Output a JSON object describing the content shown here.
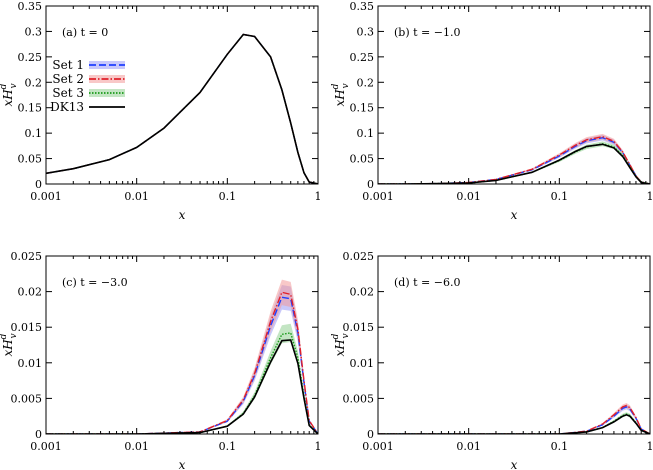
{
  "chart_data": [
    {
      "type": "line",
      "panel_label": "(a) t = 0",
      "xlabel": "x",
      "ylabel": "xH_v^d",
      "xscale": "log",
      "xlim": [
        0.001,
        1
      ],
      "ylim": [
        0,
        0.35
      ],
      "xticks": [
        "0.001",
        "0.01",
        "0.1",
        "1"
      ],
      "yticks": [
        "0",
        "0.05",
        "0.1",
        "0.15",
        "0.2",
        "0.25",
        "0.3",
        "0.35"
      ],
      "legend": {
        "placement": "top-left",
        "entries": [
          {
            "name": "Set 1",
            "color": "#1f3fff",
            "style": "dashed"
          },
          {
            "name": "Set 2",
            "color": "#e0202a",
            "style": "dash-dot"
          },
          {
            "name": "Set 3",
            "color": "#1a9a1a",
            "style": "dotted"
          },
          {
            "name": "DK13",
            "color": "#000000",
            "style": "solid"
          }
        ]
      },
      "x": [
        0.001,
        0.002,
        0.005,
        0.01,
        0.02,
        0.05,
        0.1,
        0.15,
        0.2,
        0.3,
        0.4,
        0.5,
        0.6,
        0.7,
        0.8,
        1.0
      ],
      "series": [
        {
          "name": "Set 1",
          "color": "#1f3fff",
          "values": [
            0.021,
            0.03,
            0.048,
            0.072,
            0.11,
            0.18,
            0.255,
            0.294,
            0.29,
            0.25,
            0.185,
            0.12,
            0.062,
            0.022,
            0.004,
            0.0
          ]
        },
        {
          "name": "Set 2",
          "color": "#e0202a",
          "values": [
            0.021,
            0.03,
            0.048,
            0.072,
            0.11,
            0.18,
            0.255,
            0.294,
            0.29,
            0.25,
            0.185,
            0.12,
            0.062,
            0.022,
            0.004,
            0.0
          ]
        },
        {
          "name": "Set 3",
          "color": "#1a9a1a",
          "values": [
            0.021,
            0.03,
            0.048,
            0.072,
            0.11,
            0.18,
            0.255,
            0.294,
            0.29,
            0.25,
            0.185,
            0.12,
            0.062,
            0.022,
            0.004,
            0.0
          ]
        },
        {
          "name": "DK13",
          "color": "#000000",
          "values": [
            0.021,
            0.03,
            0.048,
            0.072,
            0.11,
            0.18,
            0.255,
            0.294,
            0.29,
            0.25,
            0.185,
            0.12,
            0.062,
            0.022,
            0.004,
            0.0
          ]
        }
      ]
    },
    {
      "type": "line",
      "panel_label": "(b) t = −1.0",
      "xlabel": "x",
      "ylabel": "xH_v^d",
      "xscale": "log",
      "xlim": [
        0.001,
        1
      ],
      "ylim": [
        0,
        0.35
      ],
      "xticks": [
        "0.001",
        "0.01",
        "0.1",
        "1"
      ],
      "yticks": [
        "0",
        "0.05",
        "0.1",
        "0.15",
        "0.2",
        "0.25",
        "0.3",
        "0.35"
      ],
      "x": [
        0.001,
        0.002,
        0.005,
        0.01,
        0.02,
        0.05,
        0.1,
        0.15,
        0.2,
        0.3,
        0.4,
        0.5,
        0.6,
        0.7,
        0.8,
        1.0
      ],
      "series": [
        {
          "name": "Set 1",
          "color": "#1f3fff",
          "values": [
            0.0,
            0.0,
            0.001,
            0.003,
            0.009,
            0.028,
            0.055,
            0.074,
            0.085,
            0.091,
            0.082,
            0.062,
            0.037,
            0.016,
            0.004,
            0.0
          ]
        },
        {
          "name": "Set 2",
          "color": "#e0202a",
          "values": [
            0.0,
            0.0,
            0.001,
            0.003,
            0.009,
            0.029,
            0.057,
            0.076,
            0.087,
            0.093,
            0.084,
            0.063,
            0.038,
            0.016,
            0.004,
            0.0
          ]
        },
        {
          "name": "Set 3",
          "color": "#1a9a1a",
          "values": [
            0.0,
            0.0,
            0.001,
            0.002,
            0.007,
            0.023,
            0.046,
            0.063,
            0.073,
            0.079,
            0.073,
            0.056,
            0.034,
            0.015,
            0.004,
            0.0
          ]
        },
        {
          "name": "DK13",
          "color": "#000000",
          "values": [
            0.0,
            0.0,
            0.001,
            0.002,
            0.007,
            0.023,
            0.047,
            0.064,
            0.074,
            0.078,
            0.071,
            0.054,
            0.032,
            0.014,
            0.003,
            0.0
          ]
        }
      ]
    },
    {
      "type": "line",
      "panel_label": "(c) t = −3.0",
      "xlabel": "x",
      "ylabel": "xH_v^d",
      "xscale": "log",
      "xlim": [
        0.001,
        1
      ],
      "ylim": [
        0,
        0.025
      ],
      "xticks": [
        "0.001",
        "0.01",
        "0.1",
        "1"
      ],
      "yticks": [
        "0",
        "0.005",
        "0.01",
        "0.015",
        "0.02",
        "0.025"
      ],
      "x": [
        0.001,
        0.01,
        0.05,
        0.1,
        0.15,
        0.2,
        0.3,
        0.4,
        0.5,
        0.6,
        0.7,
        0.8,
        1.0
      ],
      "series": [
        {
          "name": "Set 1",
          "color": "#1f3fff",
          "values": [
            0.0,
            0.0,
            0.0003,
            0.0018,
            0.0046,
            0.0082,
            0.0152,
            0.0192,
            0.019,
            0.0142,
            0.0072,
            0.0018,
            0.0
          ]
        },
        {
          "name": "Set 2",
          "color": "#e0202a",
          "values": [
            0.0,
            0.0,
            0.0003,
            0.0019,
            0.0048,
            0.0085,
            0.0158,
            0.0199,
            0.0196,
            0.0147,
            0.0075,
            0.0019,
            0.0
          ]
        },
        {
          "name": "Set 3",
          "color": "#1a9a1a",
          "values": [
            0.0,
            0.0,
            0.0002,
            0.0011,
            0.0029,
            0.0054,
            0.0107,
            0.014,
            0.0142,
            0.0107,
            0.0054,
            0.0013,
            0.0
          ]
        },
        {
          "name": "DK13",
          "color": "#000000",
          "values": [
            0.0,
            0.0,
            0.0002,
            0.0011,
            0.0028,
            0.0052,
            0.0101,
            0.0131,
            0.0132,
            0.0099,
            0.005,
            0.0012,
            0.0
          ]
        }
      ]
    },
    {
      "type": "line",
      "panel_label": "(d) t = −6.0",
      "xlabel": "x",
      "ylabel": "xH_v^d",
      "xscale": "log",
      "xlim": [
        0.001,
        1
      ],
      "ylim": [
        0,
        0.025
      ],
      "xticks": [
        "0.001",
        "0.01",
        "0.1",
        "1"
      ],
      "yticks": [
        "0",
        "0.005",
        "0.01",
        "0.015",
        "0.02",
        "0.025"
      ],
      "x": [
        0.001,
        0.01,
        0.1,
        0.2,
        0.3,
        0.4,
        0.5,
        0.55,
        0.6,
        0.7,
        0.8,
        1.0
      ],
      "series": [
        {
          "name": "Set 1",
          "color": "#1f3fff",
          "values": [
            0.0,
            0.0,
            0.0,
            0.0004,
            0.0013,
            0.0025,
            0.0036,
            0.0038,
            0.0035,
            0.0022,
            0.0007,
            0.0
          ]
        },
        {
          "name": "Set 2",
          "color": "#e0202a",
          "values": [
            0.0,
            0.0,
            0.0,
            0.0004,
            0.0014,
            0.0027,
            0.0038,
            0.004,
            0.0037,
            0.0023,
            0.0007,
            0.0
          ]
        },
        {
          "name": "Set 3",
          "color": "#1a9a1a",
          "values": [
            0.0,
            0.0,
            0.0,
            0.0003,
            0.0009,
            0.0018,
            0.0026,
            0.0028,
            0.0026,
            0.0016,
            0.0005,
            0.0
          ]
        },
        {
          "name": "DK13",
          "color": "#000000",
          "values": [
            0.0,
            0.0,
            0.0,
            0.0003,
            0.0009,
            0.0017,
            0.0025,
            0.0027,
            0.0025,
            0.0015,
            0.0005,
            0.0
          ]
        }
      ]
    }
  ]
}
